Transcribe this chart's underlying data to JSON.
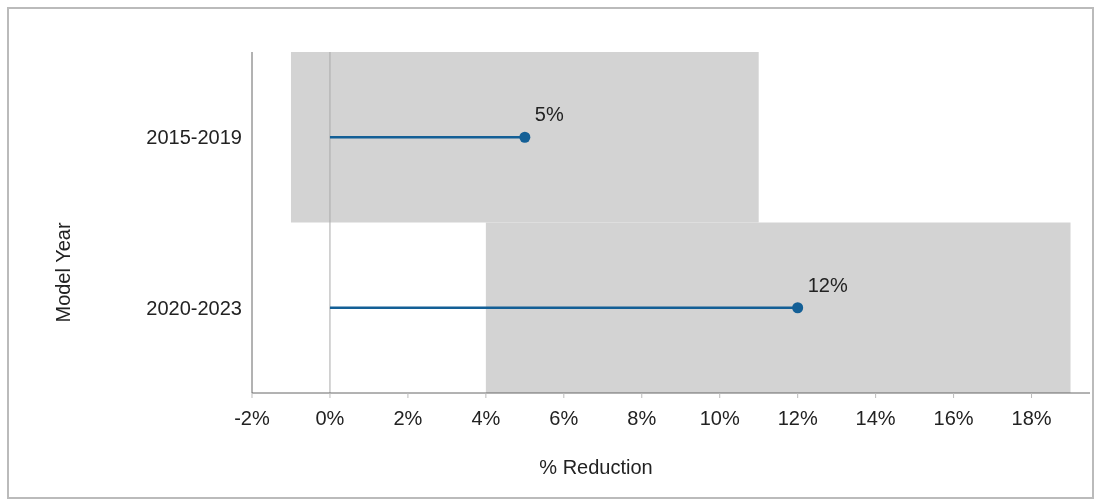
{
  "chart_data": {
    "type": "bar",
    "orientation": "horizontal",
    "xlabel": "% Reduction",
    "ylabel": "Model Year",
    "categories": [
      "2015-2019",
      "2020-2023"
    ],
    "series": [
      {
        "color": "#d3d3d3",
        "base": [
          -1,
          4
        ],
        "values": [
          12,
          15
        ]
      },
      {
        "type": "lollipop",
        "color": "#135f96",
        "values": [
          5,
          12
        ],
        "value_labels": [
          "5%",
          "12%"
        ]
      }
    ],
    "xlim": [
      -2,
      19.5
    ],
    "xticks": [
      {
        "value": -2,
        "label": "-2%"
      },
      {
        "value": 0,
        "label": "0%"
      },
      {
        "value": 2,
        "label": "2%"
      },
      {
        "value": 4,
        "label": "4%"
      },
      {
        "value": 6,
        "label": "6%"
      },
      {
        "value": 8,
        "label": "8%"
      },
      {
        "value": 10,
        "label": "10%"
      },
      {
        "value": 12,
        "label": "12%"
      },
      {
        "value": 14,
        "label": "14%"
      },
      {
        "value": 16,
        "label": "16%"
      },
      {
        "value": 18,
        "label": "18%"
      }
    ],
    "ref_lines": [
      {
        "axis": "x",
        "value": 0,
        "color": "#aaaaaa"
      }
    ],
    "marker": "circle"
  }
}
